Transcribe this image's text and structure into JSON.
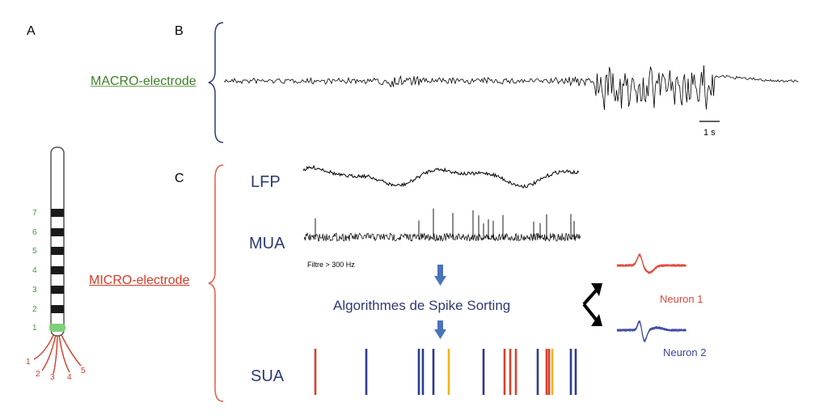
{
  "panels": {
    "a": "A",
    "b": "B",
    "c": "C"
  },
  "macro_label": "MACRO-electrode",
  "micro_label": "MICRO-electrode",
  "scale_bar": "1 s",
  "signals": {
    "lfp": "LFP",
    "mua": "MUA",
    "sua": "SUA"
  },
  "filter_note": "Filtre > 300 Hz",
  "algorithm": "Algorithmes de Spike Sorting",
  "neurons": [
    {
      "name": "Neuron 1",
      "color": "#e0453a"
    },
    {
      "name": "Neuron 2",
      "color": "#3a45a0"
    }
  ],
  "electrode": {
    "contacts": [
      "7",
      "6",
      "5",
      "4",
      "3",
      "2",
      "1"
    ],
    "active_contact": "1",
    "micro_wires": [
      "1",
      "2",
      "3",
      "4",
      "5"
    ]
  },
  "colors": {
    "macro": "#3f7f2a",
    "micro": "#d03c2a",
    "brace_macro": "#2e3a72",
    "brace_micro": "#e25b45",
    "arrow": "#4a74b9",
    "sua_red": "#d9402b",
    "sua_blue": "#2c3a8f",
    "sua_yellow": "#f0b21b"
  },
  "sua_spikes": [
    "red",
    "blue",
    "blue",
    "blue",
    "blue",
    "yellow",
    "blue",
    "red",
    "red",
    "red",
    "blue",
    "red",
    "red",
    "yellow",
    "blue",
    "blue"
  ]
}
